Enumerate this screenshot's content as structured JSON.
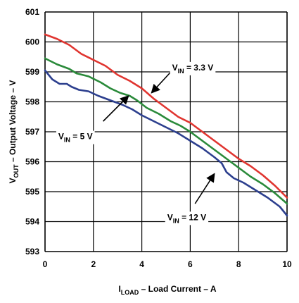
{
  "chart_data": {
    "type": "line",
    "title": "",
    "xlabel": {
      "main": "I",
      "sub": "LOAD",
      "rest": " – Load Current – A"
    },
    "ylabel": {
      "main": "V",
      "sub": "OUT",
      "rest": " – Output Voltage – V"
    },
    "xlim": [
      0,
      10
    ],
    "ylim": [
      593,
      601
    ],
    "xticks": [
      "0",
      "2",
      "4",
      "6",
      "8",
      "10"
    ],
    "yticks": [
      "593",
      "594",
      "595",
      "596",
      "597",
      "598",
      "599",
      "600",
      "601"
    ],
    "grid": true,
    "colors": {
      "vin_3_3": "#e03530",
      "vin_5": "#2a8a3a",
      "vin_12": "#2c3f8e",
      "grid": "#000000"
    },
    "series": [
      {
        "name": "VIN = 3.3 V",
        "color": "#e03530",
        "points": [
          [
            0,
            600.25
          ],
          [
            0.5,
            600.1
          ],
          [
            1,
            599.9
          ],
          [
            1.5,
            599.6
          ],
          [
            2,
            599.4
          ],
          [
            2.5,
            599.2
          ],
          [
            3,
            598.9
          ],
          [
            3.5,
            598.7
          ],
          [
            4,
            598.45
          ],
          [
            4.5,
            598.1
          ],
          [
            5,
            597.8
          ],
          [
            5.5,
            597.5
          ],
          [
            6,
            597.3
          ],
          [
            6.5,
            597.0
          ],
          [
            7,
            596.7
          ],
          [
            7.5,
            596.4
          ],
          [
            8,
            596.1
          ],
          [
            8.5,
            595.85
          ],
          [
            9,
            595.55
          ],
          [
            9.5,
            595.2
          ],
          [
            10,
            594.8
          ]
        ]
      },
      {
        "name": "VIN = 5 V",
        "color": "#2a8a3a",
        "points": [
          [
            0,
            599.45
          ],
          [
            0.5,
            599.25
          ],
          [
            1,
            599.1
          ],
          [
            1.3,
            598.95
          ],
          [
            1.8,
            598.85
          ],
          [
            2.3,
            598.65
          ],
          [
            2.7,
            598.45
          ],
          [
            3.1,
            598.3
          ],
          [
            3.5,
            598.2
          ],
          [
            3.8,
            598.05
          ],
          [
            4.2,
            597.8
          ],
          [
            4.7,
            597.6
          ],
          [
            5.2,
            597.35
          ],
          [
            5.6,
            597.2
          ],
          [
            6,
            597.0
          ],
          [
            6.5,
            596.7
          ],
          [
            7,
            596.4
          ],
          [
            7.5,
            596.1
          ],
          [
            8,
            595.8
          ],
          [
            8.5,
            595.5
          ],
          [
            9,
            595.25
          ],
          [
            9.5,
            594.95
          ],
          [
            10,
            594.6
          ]
        ]
      },
      {
        "name": "VIN = 12 V",
        "color": "#2c3f8e",
        "points": [
          [
            0,
            599.05
          ],
          [
            0.3,
            598.75
          ],
          [
            0.6,
            598.6
          ],
          [
            0.9,
            598.6
          ],
          [
            1.1,
            598.5
          ],
          [
            1.4,
            598.4
          ],
          [
            1.8,
            598.35
          ],
          [
            2.2,
            598.2
          ],
          [
            2.7,
            598.05
          ],
          [
            3.2,
            597.9
          ],
          [
            3.6,
            597.75
          ],
          [
            4,
            597.55
          ],
          [
            4.5,
            597.35
          ],
          [
            5,
            597.15
          ],
          [
            5.5,
            596.95
          ],
          [
            6,
            596.7
          ],
          [
            6.5,
            596.45
          ],
          [
            7,
            596.15
          ],
          [
            7.3,
            595.95
          ],
          [
            7.5,
            595.65
          ],
          [
            7.8,
            595.45
          ],
          [
            8.2,
            595.3
          ],
          [
            8.7,
            595.05
          ],
          [
            9.2,
            594.8
          ],
          [
            9.7,
            594.5
          ],
          [
            10,
            594.2
          ]
        ]
      }
    ],
    "annotations": [
      {
        "main": "V",
        "sub": "IN",
        "rest": " = 3.3 V",
        "arrow_to": [
          4.4,
          598.3
        ],
        "arrow_from": [
          5.2,
          599.0
        ],
        "text_at": [
          5.25,
          599.05
        ]
      },
      {
        "main": "V",
        "sub": "IN",
        "rest": " = 5 V",
        "arrow_to": [
          3.45,
          598.2
        ],
        "arrow_from": [
          2.4,
          597.35
        ],
        "text_at": [
          0.55,
          596.75
        ]
      },
      {
        "main": "V",
        "sub": "IN",
        "rest": " = 12 V",
        "arrow_to": [
          7.0,
          595.6
        ],
        "arrow_from": [
          6.2,
          594.6
        ],
        "text_at": [
          5.05,
          594.05
        ]
      }
    ]
  }
}
